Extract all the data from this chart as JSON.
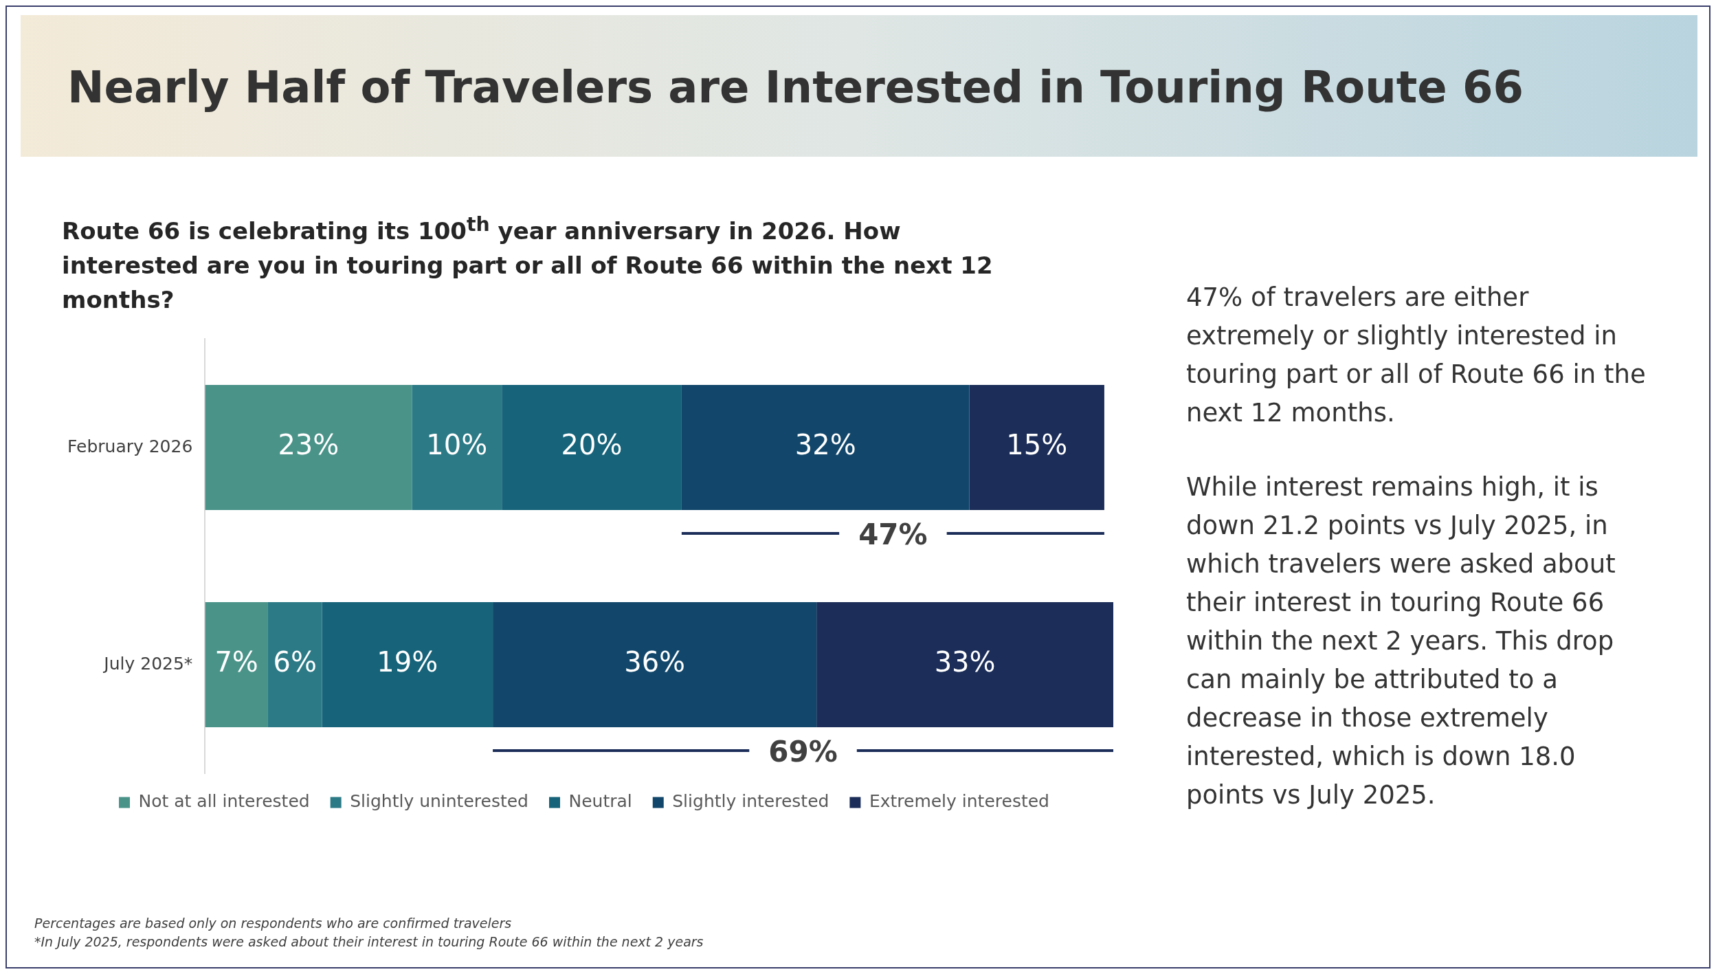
{
  "chart_data": {
    "type": "bar",
    "orientation": "horizontal",
    "stacked": true,
    "title": "Nearly Half of Travelers are Interested in Touring Route 66",
    "subtitle": "Route 66 is celebrating its 100$^{th}$ year anniversary in 2026. How interested are you in touring part or all of Route 66 within the next 12 months?",
    "categories": [
      "February 2026",
      "July 2025*"
    ],
    "series": [
      {
        "name": "Not at all interested",
        "color": "#4a9389",
        "values": [
          23,
          7
        ],
        "value_labels": [
          "23%",
          "7%"
        ]
      },
      {
        "name": "Slightly uninterested",
        "color": "#2b7a86",
        "values": [
          10,
          6
        ],
        "value_labels": [
          "10%",
          "6%"
        ]
      },
      {
        "name": "Neutral",
        "color": "#16637a",
        "values": [
          20,
          19
        ],
        "value_labels": [
          "20%",
          "19%"
        ]
      },
      {
        "name": "Slightly interested",
        "color": "#12476b",
        "values": [
          32,
          36
        ],
        "value_labels": [
          "32%",
          "36%"
        ]
      },
      {
        "name": "Extremely interested",
        "color": "#1b2d58",
        "values": [
          15,
          33
        ],
        "value_labels": [
          "15%",
          "33%"
        ]
      }
    ],
    "legend": "bottom",
    "annotations": [
      "47% of travelers are either extremely or slightly interested in touring part or all of Route 66 in the next 12 months.",
      "While interest remains high, it is down 21.2 points vs July 2025, in which travelers were asked about their interest in touring Route 66 within the next 2 years. This drop can mainly be attributed to a decrease in those extremely interested, which is down 18.0 points vs July 2025.",
      "Percentages are based only on respondents who are confirmed travelers",
      "*In July 2025, respondents were asked about their interest in touring Route 66 within the next 2 years",
      "47%",
      "69%"
    ]
  }
}
